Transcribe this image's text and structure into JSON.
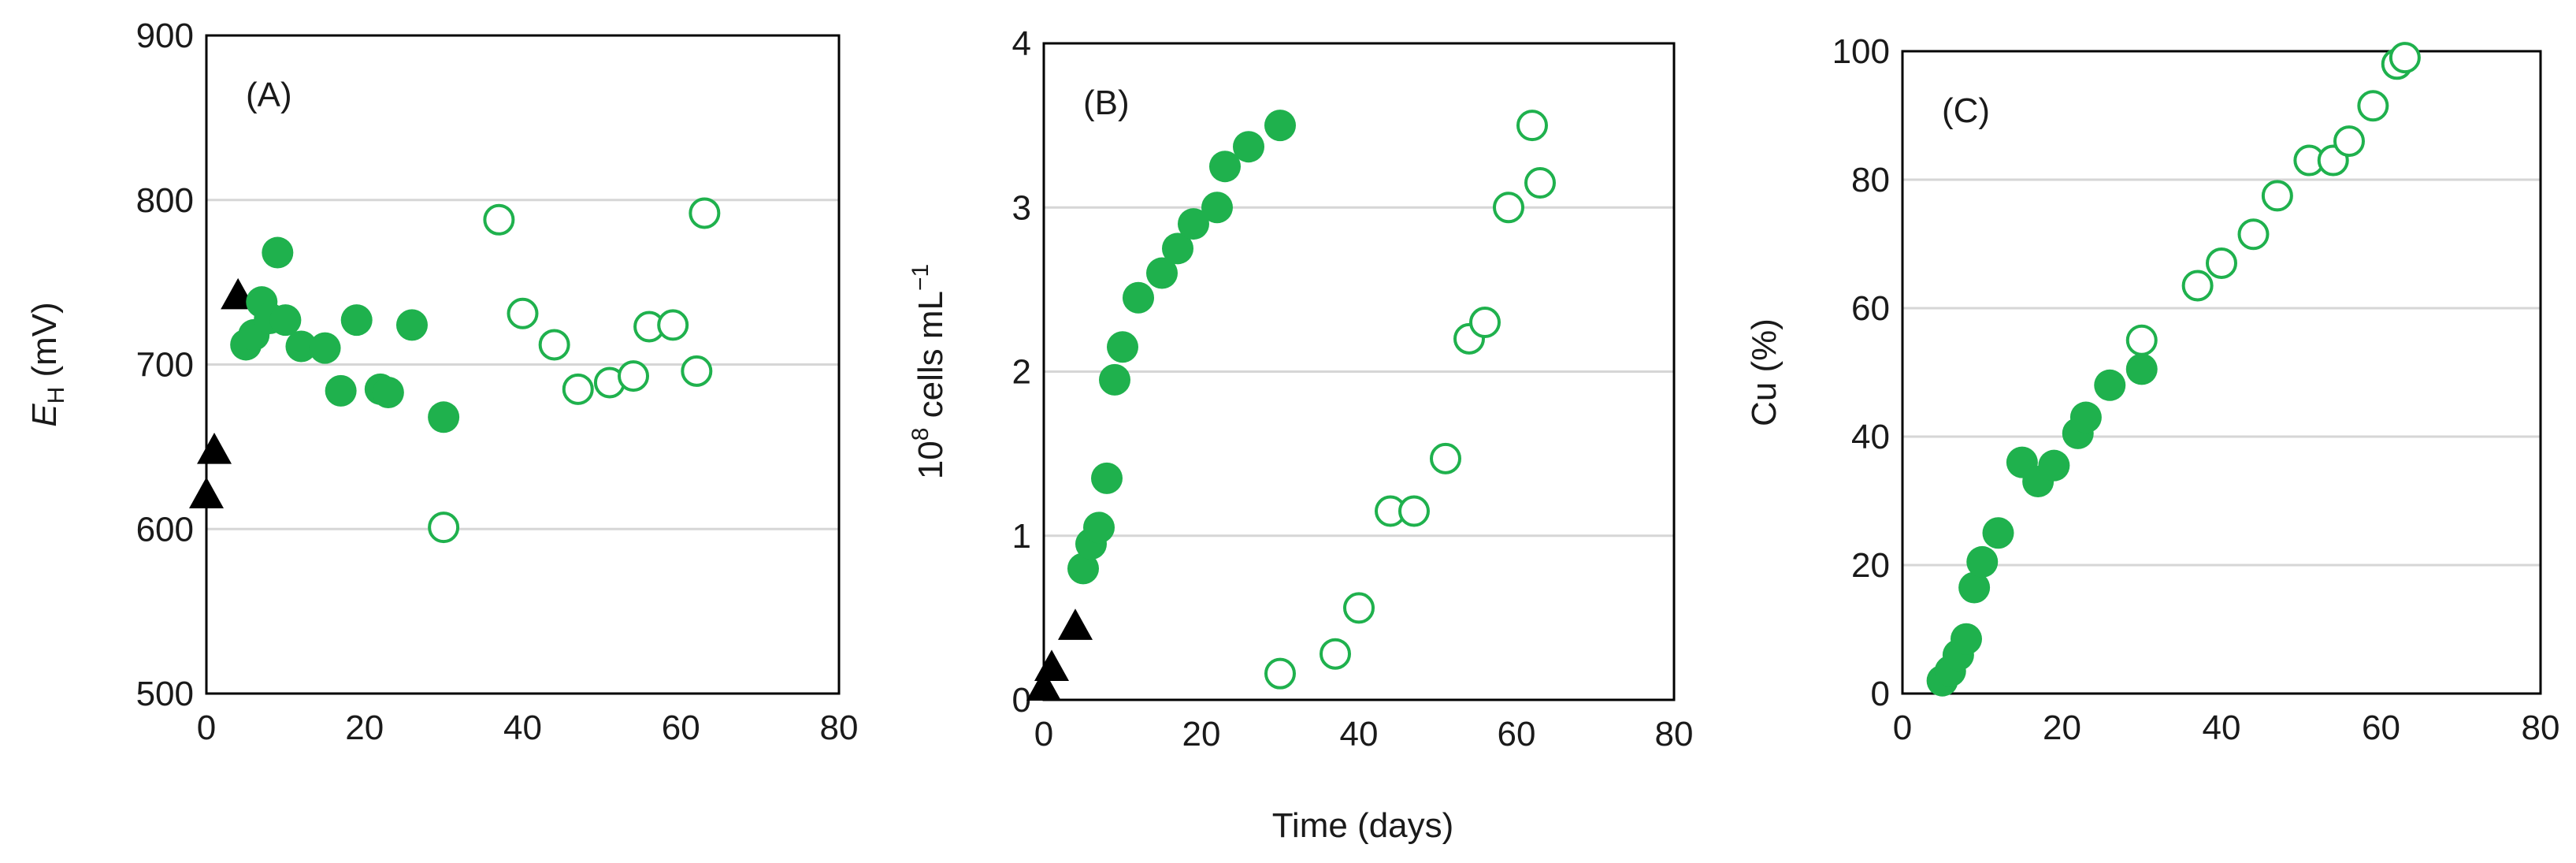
{
  "colors": {
    "green": "#1fb14d",
    "black": "#000000",
    "grid": "#d6d6d6"
  },
  "shared_xlabel": "Time (days)",
  "chart_data": [
    {
      "type": "scatter",
      "panel_label": "(A)",
      "ylabel_main": "E",
      "ylabel_sub": "H",
      "ylabel_tail": " (mV)",
      "xlabel": "",
      "xlim": [
        0,
        80
      ],
      "ylim": [
        500,
        900
      ],
      "xticks": [
        0,
        20,
        40,
        60,
        80
      ],
      "yticks": [
        500,
        600,
        700,
        800,
        900
      ],
      "grid": true,
      "series": [
        {
          "marker": "triangle",
          "color": "#000000",
          "filled": true,
          "points": [
            [
              0,
              621
            ],
            [
              1,
              648
            ],
            [
              4,
              742
            ]
          ]
        },
        {
          "marker": "circle",
          "color": "#1fb14d",
          "filled": true,
          "points": [
            [
              5,
              712
            ],
            [
              6,
              718
            ],
            [
              7,
              738
            ],
            [
              8,
              728
            ],
            [
              9,
              768
            ],
            [
              10,
              727
            ],
            [
              12,
              711
            ],
            [
              15,
              710
            ],
            [
              17,
              684
            ],
            [
              19,
              727
            ],
            [
              22,
              685
            ],
            [
              23,
              683
            ],
            [
              26,
              724
            ],
            [
              30,
              668
            ]
          ]
        },
        {
          "marker": "circle",
          "color": "#1fb14d",
          "filled": false,
          "points": [
            [
              30,
              601
            ],
            [
              37,
              788
            ],
            [
              40,
              731
            ],
            [
              44,
              712
            ],
            [
              47,
              685
            ],
            [
              51,
              689
            ],
            [
              54,
              693
            ],
            [
              56,
              723
            ],
            [
              59,
              724
            ],
            [
              62,
              696
            ],
            [
              63,
              792
            ]
          ]
        }
      ]
    },
    {
      "type": "scatter",
      "panel_label": "(B)",
      "ylabel_main": "10",
      "ylabel_sup": "8",
      "ylabel_tail": " cells mL",
      "ylabel_sup2": "−1",
      "xlabel": "Time (days)",
      "xlim": [
        0,
        80
      ],
      "ylim": [
        0,
        4
      ],
      "xticks": [
        0,
        20,
        40,
        60,
        80
      ],
      "yticks": [
        0,
        1,
        2,
        3,
        4
      ],
      "grid": true,
      "series": [
        {
          "marker": "triangle",
          "color": "#000000",
          "filled": true,
          "points": [
            [
              0,
              0.08
            ],
            [
              1,
              0.2
            ],
            [
              4,
              0.45
            ]
          ]
        },
        {
          "marker": "circle",
          "color": "#1fb14d",
          "filled": true,
          "points": [
            [
              5,
              0.8
            ],
            [
              6,
              0.95
            ],
            [
              7,
              1.05
            ],
            [
              8,
              1.35
            ],
            [
              9,
              1.95
            ],
            [
              10,
              2.15
            ],
            [
              12,
              2.45
            ],
            [
              15,
              2.6
            ],
            [
              17,
              2.75
            ],
            [
              19,
              2.9
            ],
            [
              22,
              3.0
            ],
            [
              23,
              3.25
            ],
            [
              26,
              3.37
            ],
            [
              30,
              3.5
            ]
          ]
        },
        {
          "marker": "circle",
          "color": "#1fb14d",
          "filled": false,
          "points": [
            [
              30,
              0.16
            ],
            [
              37,
              0.28
            ],
            [
              40,
              0.56
            ],
            [
              44,
              1.15
            ],
            [
              47,
              1.15
            ],
            [
              51,
              1.47
            ],
            [
              54,
              2.2
            ],
            [
              56,
              2.3
            ],
            [
              59,
              3.0
            ],
            [
              62,
              3.5
            ],
            [
              63,
              3.15
            ]
          ]
        }
      ]
    },
    {
      "type": "scatter",
      "panel_label": "(C)",
      "ylabel_main": "Cu (%)",
      "xlabel": "",
      "xlim": [
        0,
        80
      ],
      "ylim": [
        0,
        100
      ],
      "xticks": [
        0,
        20,
        40,
        60,
        80
      ],
      "yticks": [
        0,
        20,
        40,
        60,
        80,
        100
      ],
      "grid": true,
      "series": [
        {
          "marker": "circle",
          "color": "#1fb14d",
          "filled": true,
          "points": [
            [
              5,
              2
            ],
            [
              6,
              3.5
            ],
            [
              7,
              6
            ],
            [
              8,
              8.5
            ],
            [
              9,
              16.5
            ],
            [
              10,
              20.5
            ],
            [
              12,
              25
            ],
            [
              15,
              36
            ],
            [
              17,
              33
            ],
            [
              19,
              35.5
            ],
            [
              22,
              40.5
            ],
            [
              23,
              43
            ],
            [
              26,
              48
            ],
            [
              30,
              50.5
            ]
          ]
        },
        {
          "marker": "circle",
          "color": "#1fb14d",
          "filled": false,
          "points": [
            [
              30,
              55
            ],
            [
              37,
              63.5
            ],
            [
              40,
              67
            ],
            [
              44,
              71.5
            ],
            [
              47,
              77.5
            ],
            [
              51,
              83
            ],
            [
              54,
              83
            ],
            [
              56,
              86
            ],
            [
              59,
              91.5
            ],
            [
              62,
              98
            ],
            [
              63,
              99
            ]
          ]
        }
      ]
    }
  ]
}
